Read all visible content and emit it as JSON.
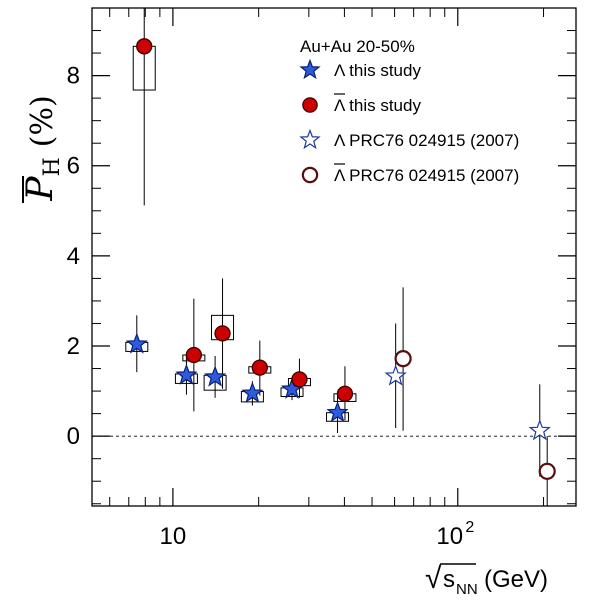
{
  "chart_data": {
    "type": "scatter",
    "title": "",
    "xlabel": "√s_NN (GeV)",
    "xlabel_parts": {
      "radical": "√",
      "base": "s",
      "sub": "NN",
      "unit": "(GeV)"
    },
    "ylabel": "P̄_H (%)",
    "ylabel_parts": {
      "symbol": "P",
      "sub": "H",
      "unit": "(%)"
    },
    "x_scale": "log",
    "xlim": [
      5.2,
      260
    ],
    "ylim": [
      -1.55,
      9.5
    ],
    "xticks": [
      {
        "value": 10,
        "label": "10"
      },
      {
        "value": 100,
        "label": "10",
        "sup": "2"
      }
    ],
    "yticks": [
      0,
      2,
      4,
      6,
      8
    ],
    "reference_line": {
      "y": 0,
      "style": "dashed"
    },
    "legend": {
      "header": "Au+Au 20-50%",
      "position": "top-right",
      "entries": [
        {
          "key": "lambda_this",
          "label": "Λ this study",
          "marker": "star",
          "fill": "#2c5be0"
        },
        {
          "key": "antilambda_this",
          "label": "Λ this study",
          "overline": true,
          "marker": "circle",
          "fill": "#cc0000"
        },
        {
          "key": "lambda_prc",
          "label": "Λ PRC76 024915 (2007)",
          "marker": "star-open",
          "fill": "#ffffff"
        },
        {
          "key": "antilambda_prc",
          "label": "Λ PRC76 024915 (2007)",
          "overline": true,
          "marker": "circle-open",
          "fill": "#ffffff"
        }
      ]
    },
    "series": [
      {
        "key": "lambda_this",
        "marker": "star",
        "fill": "#2c5be0",
        "stroke": "#0b1f6e",
        "points": [
          {
            "x": 7.7,
            "y": 2.04,
            "stat_lo": 1.42,
            "stat_hi": 2.68,
            "sys_lo": 1.88,
            "sys_hi": 2.08
          },
          {
            "x": 11.5,
            "y": 1.35,
            "stat_lo": 0.92,
            "stat_hi": 1.78,
            "sys_lo": 1.17,
            "sys_hi": 1.38
          },
          {
            "x": 14.5,
            "y": 1.31,
            "stat_lo": 0.85,
            "stat_hi": 1.78,
            "sys_lo": 1.02,
            "sys_hi": 1.35
          },
          {
            "x": 19.6,
            "y": 0.95,
            "stat_lo": 0.68,
            "stat_hi": 1.22,
            "sys_lo": 0.76,
            "sys_hi": 0.99
          },
          {
            "x": 27,
            "y": 1.04,
            "stat_lo": 0.8,
            "stat_hi": 1.28,
            "sys_lo": 0.88,
            "sys_hi": 1.07
          },
          {
            "x": 39,
            "y": 0.52,
            "stat_lo": 0.07,
            "stat_hi": 0.92,
            "sys_lo": 0.33,
            "sys_hi": 0.52
          }
        ]
      },
      {
        "key": "antilambda_this",
        "marker": "circle",
        "fill": "#cc0000",
        "stroke": "#3a0000",
        "points": [
          {
            "x": 7.7,
            "y": 8.65,
            "stat_lo": 5.12,
            "stat_hi": 9.5,
            "sys_lo": 7.68,
            "sys_hi": 8.65
          },
          {
            "x": 11.5,
            "y": 1.8,
            "stat_lo": 0.55,
            "stat_hi": 3.05,
            "sys_lo": 1.67,
            "sys_hi": 1.8
          },
          {
            "x": 14.5,
            "y": 2.28,
            "stat_lo": 1.05,
            "stat_hi": 3.5,
            "sys_lo": 2.14,
            "sys_hi": 2.68
          },
          {
            "x": 19.6,
            "y": 1.52,
            "stat_lo": 0.9,
            "stat_hi": 2.12,
            "sys_lo": 1.4,
            "sys_hi": 1.54
          },
          {
            "x": 27,
            "y": 1.26,
            "stat_lo": 0.85,
            "stat_hi": 1.72,
            "sys_lo": 1.12,
            "sys_hi": 1.28
          },
          {
            "x": 39,
            "y": 0.94,
            "stat_lo": 0.35,
            "stat_hi": 1.55,
            "sys_lo": 0.77,
            "sys_hi": 0.94
          }
        ]
      },
      {
        "key": "lambda_prc",
        "marker": "star-open",
        "fill": "#ffffff",
        "stroke": "#1c3a9a",
        "points": [
          {
            "x": 62.4,
            "y": 1.33,
            "stat_lo": 0.18,
            "stat_hi": 2.5
          },
          {
            "x": 200,
            "y": 0.12,
            "stat_lo": -0.9,
            "stat_hi": 1.15
          }
        ]
      },
      {
        "key": "antilambda_prc",
        "marker": "circle-open",
        "fill": "#ffffff",
        "stroke": "#5a0d0d",
        "points": [
          {
            "x": 62.4,
            "y": 1.72,
            "stat_lo": 0.12,
            "stat_hi": 3.3
          },
          {
            "x": 200,
            "y": -0.78,
            "stat_lo": -1.55,
            "stat_hi": 0.0
          }
        ]
      }
    ]
  }
}
